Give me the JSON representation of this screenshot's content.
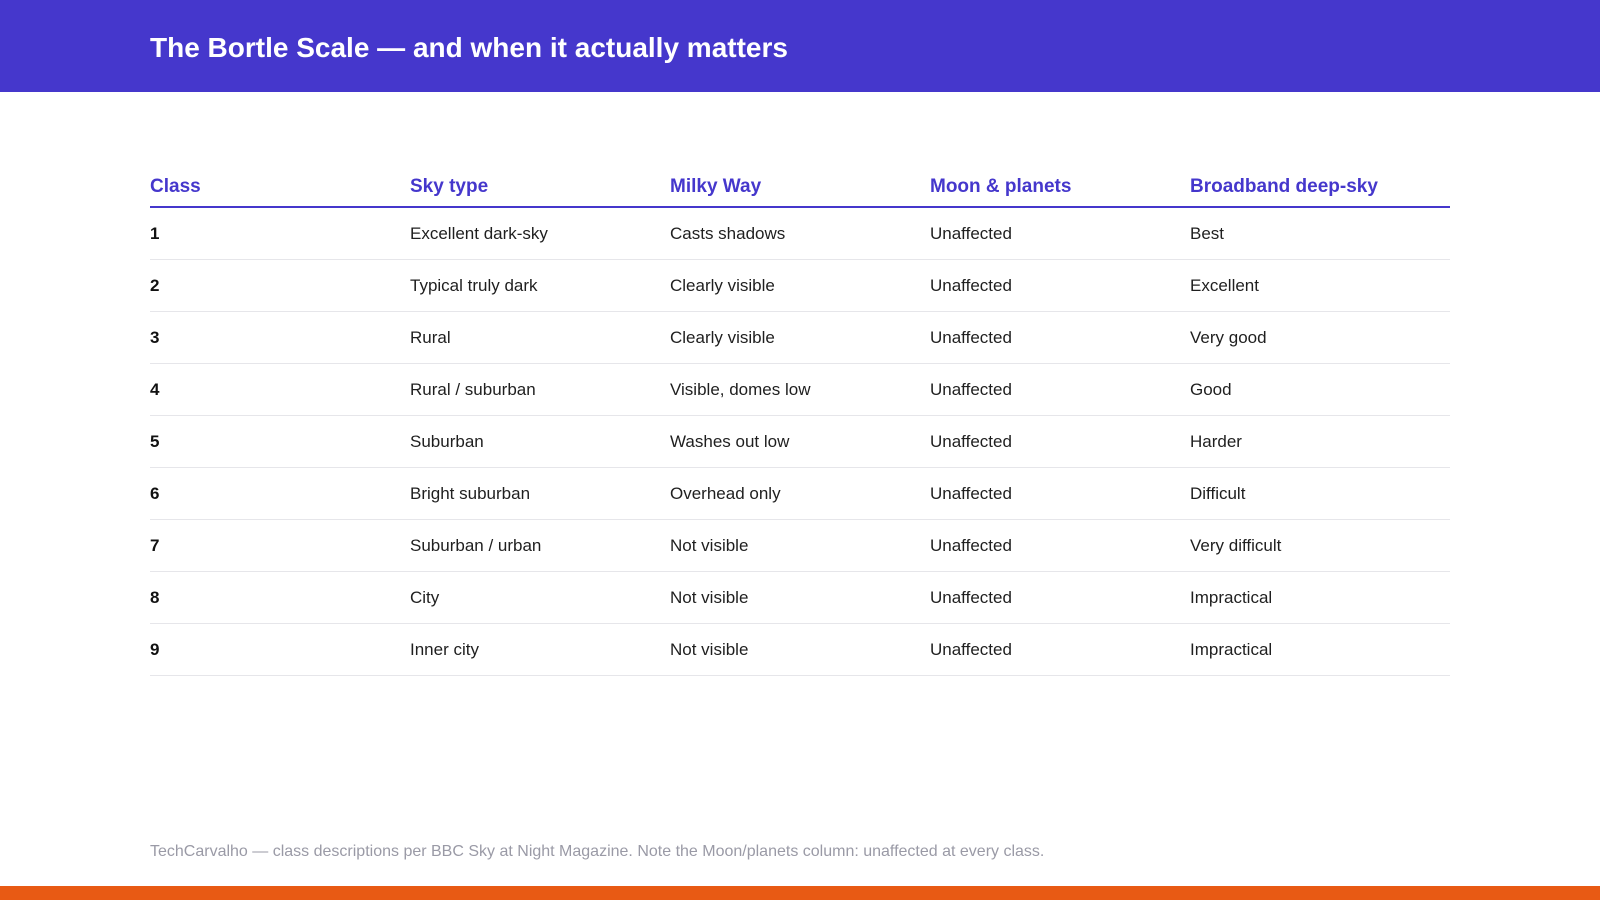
{
  "header": {
    "title": "The Bortle Scale — and when it actually matters"
  },
  "table": {
    "columns": [
      "Class",
      "Sky type",
      "Milky Way",
      "Moon & planets",
      "Broadband deep-sky"
    ],
    "rows": [
      [
        "1",
        "Excellent dark-sky",
        "Casts shadows",
        "Unaffected",
        "Best"
      ],
      [
        "2",
        "Typical truly dark",
        "Clearly visible",
        "Unaffected",
        "Excellent"
      ],
      [
        "3",
        "Rural",
        "Clearly visible",
        "Unaffected",
        "Very good"
      ],
      [
        "4",
        "Rural / suburban",
        "Visible, domes low",
        "Unaffected",
        "Good"
      ],
      [
        "5",
        "Suburban",
        "Washes out low",
        "Unaffected",
        "Harder"
      ],
      [
        "6",
        "Bright suburban",
        "Overhead only",
        "Unaffected",
        "Difficult"
      ],
      [
        "7",
        "Suburban / urban",
        "Not visible",
        "Unaffected",
        "Very difficult"
      ],
      [
        "8",
        "City",
        "Not visible",
        "Unaffected",
        "Impractical"
      ],
      [
        "9",
        "Inner city",
        "Not visible",
        "Unaffected",
        "Impractical"
      ]
    ]
  },
  "footnote": "TechCarvalho — class descriptions per BBC Sky at Night Magazine. Note the Moon/planets column: unaffected at every class.",
  "colors": {
    "header_bg": "#4537cc",
    "accent_text": "#4537cc",
    "bottom_bar": "#e85a14",
    "footnote_text": "#9a9aa6"
  }
}
